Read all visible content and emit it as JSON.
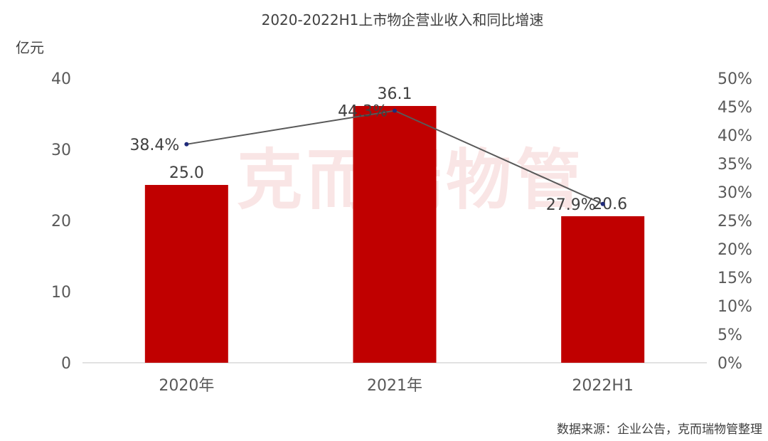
{
  "chart_data": {
    "type": "bar",
    "title": "2020-2022H1上市物企营业收入和同比增速",
    "y_unit_label": "亿元",
    "categories": [
      "2020年",
      "2021年",
      "2022H1"
    ],
    "series": [
      {
        "type": "bar",
        "values": [
          25.0,
          36.1,
          20.6
        ],
        "value_labels": [
          "25.0",
          "36.1",
          "20.6"
        ],
        "axis": "left",
        "color": "#c00000"
      },
      {
        "type": "line",
        "values": [
          38.4,
          44.3,
          27.9
        ],
        "value_labels": [
          "38.4%",
          "44.3%",
          "27.9%"
        ],
        "axis": "right",
        "color": "#595959",
        "marker_color": "#1f2a7a"
      }
    ],
    "y_left": {
      "min": 0,
      "max": 40,
      "ticks": [
        "0",
        "10",
        "20",
        "30",
        "40"
      ]
    },
    "y_right": {
      "min": 0,
      "max": 50,
      "ticks": [
        "0%",
        "5%",
        "10%",
        "15%",
        "20%",
        "25%",
        "30%",
        "35%",
        "40%",
        "45%",
        "50%"
      ]
    },
    "grid": false,
    "legend": "none"
  },
  "watermark": "克而瑞物管",
  "source": "数据来源：企业公告，克而瑞物管整理"
}
